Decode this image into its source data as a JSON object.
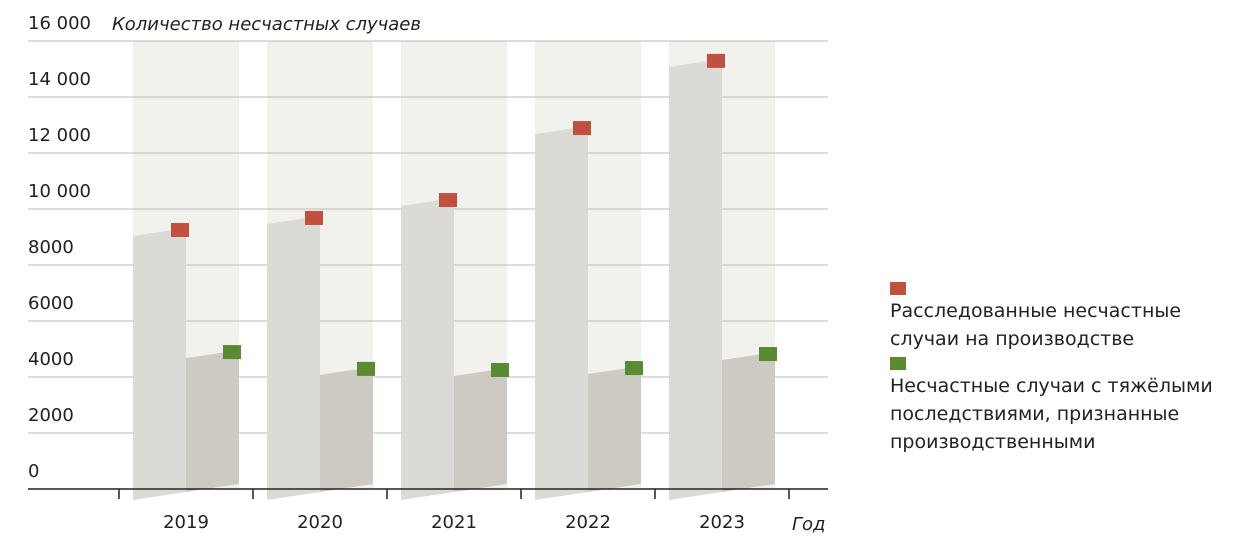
{
  "chart_data": {
    "type": "bar",
    "title": "Количество несчастных случаев",
    "xlabel": "Год",
    "categories": [
      "2019",
      "2020",
      "2021",
      "2022",
      "2023"
    ],
    "series": [
      {
        "name": "Расследованные несчастные случаи на производстве",
        "color": "#c2503e",
        "values": [
          9250,
          9680,
          10320,
          12890,
          15290
        ]
      },
      {
        "name": "Несчастные случаи с тяжёлыми последствиями, признанные производственными",
        "color": "#5a8a32",
        "values": [
          4890,
          4290,
          4250,
          4320,
          4820
        ]
      }
    ],
    "ylim": [
      0,
      16000
    ],
    "yticks": [
      0,
      2000,
      4000,
      6000,
      8000,
      {
        "value": 10000,
        "label": "10 000"
      },
      {
        "value": 12000,
        "label": "12 000"
      },
      {
        "value": 14000,
        "label": "14 000"
      },
      {
        "value": 16000,
        "label": "16 000"
      }
    ],
    "grid": true
  }
}
